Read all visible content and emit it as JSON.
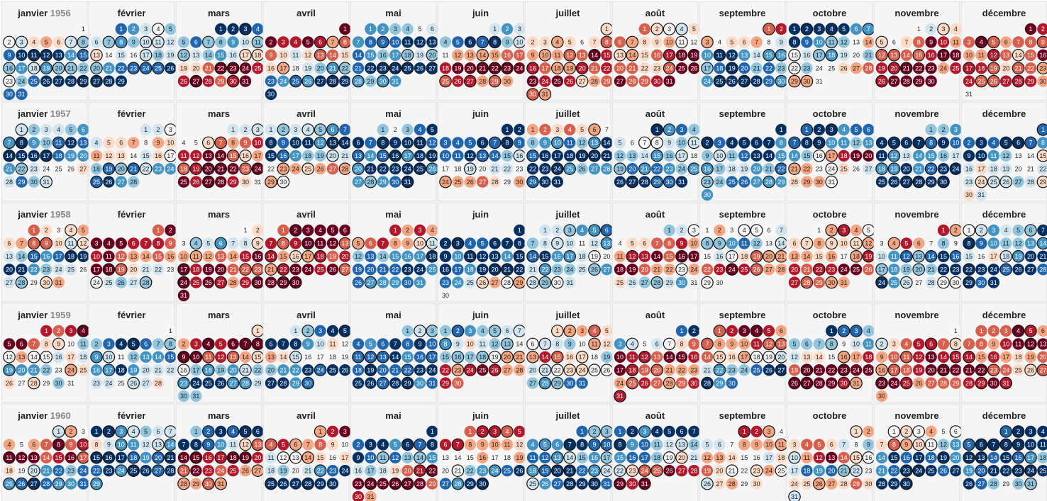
{
  "chart_data": {
    "type": "heatmap",
    "layout": "calendar",
    "years": [
      "1956",
      "1957",
      "1958",
      "1959",
      "1960"
    ],
    "months": [
      "janvier",
      "février",
      "mars",
      "avril",
      "mai",
      "juin",
      "juillet",
      "août",
      "septembre",
      "octobre",
      "novembre",
      "décembre"
    ],
    "color_scale": {
      "low": "#053061",
      "mid": "#f7f7f7",
      "high": "#67001f",
      "stops": [
        "#053061",
        "#2166ac",
        "#4393c3",
        "#92c5de",
        "#d1e5f0",
        "#f7f7f7",
        "#fddbc7",
        "#f4a582",
        "#d6604d",
        "#b2182b",
        "#67001f"
      ]
    },
    "value_range": [
      -1,
      1
    ],
    "outlined_days_marker": "bold-ring",
    "grid": false,
    "legend": "none"
  }
}
